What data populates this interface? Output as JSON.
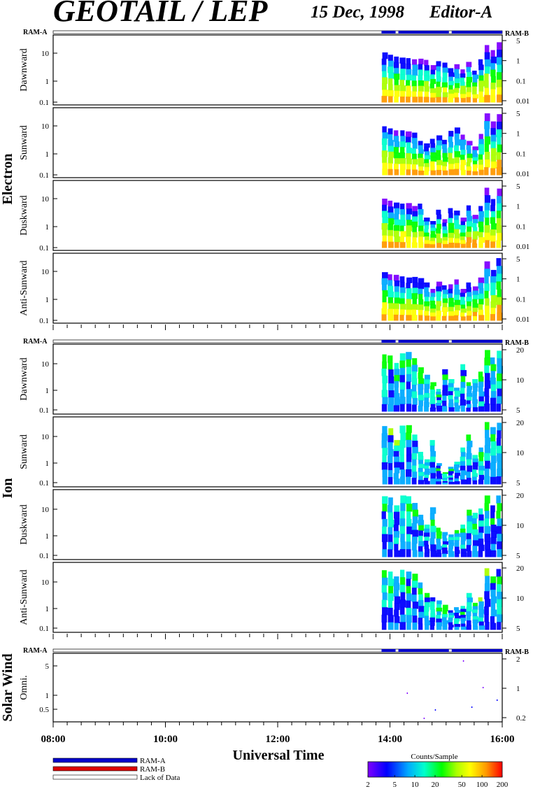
{
  "header": {
    "title": "GEOTAIL / LEP",
    "date": "15 Dec, 1998",
    "editor": "Editor-A"
  },
  "colors": {
    "ram_a": "#0000cc",
    "ram_b": "#dd0000",
    "lack": "#ffffff",
    "colorscale": [
      "#7f00ff",
      "#0000ff",
      "#00aaff",
      "#00ffcc",
      "#00ff00",
      "#aaff00",
      "#ffff00",
      "#ff9900",
      "#ff0000"
    ]
  },
  "chart_data": {
    "type": "heatmap",
    "x_axis": {
      "label": "Universal Time",
      "range": [
        "08:00",
        "16:00"
      ],
      "tick_labels": [
        "08:00",
        "10:00",
        "12:00",
        "14:00",
        "16:00"
      ]
    },
    "data_coverage": {
      "ram_a_label": "RAM-A",
      "ram_b_label": "RAM-B",
      "mode": "RAM-A",
      "segments": [
        [
          13.85,
          14.1
        ],
        [
          14.15,
          15.05
        ],
        [
          15.1,
          16.0
        ]
      ]
    },
    "groups": [
      {
        "name": "Electron",
        "panels": [
          {
            "label": "Dawnward",
            "left_ticks": [
              "10",
              "1",
              "0.1"
            ],
            "right_ticks": [
              "5",
              "1",
              "0.1",
              "0.01"
            ],
            "top_profile": [
              3.8,
              3.2,
              2.8,
              2.6,
              2.5,
              2.3,
              2.4,
              2.2,
              1.5,
              2.0,
              1.8,
              1.2,
              1.6,
              1.1,
              1.9,
              1.0,
              2.3,
              6.5,
              4.5,
              8.0
            ]
          },
          {
            "label": "Sunward",
            "left_ticks": [
              "10",
              "1",
              "0.1"
            ],
            "right_ticks": [
              "5",
              "1",
              "0.1",
              "0.01"
            ],
            "top_profile": [
              3.5,
              3.0,
              2.6,
              2.6,
              2.4,
              2.2,
              1.2,
              1.0,
              1.4,
              1.8,
              1.3,
              2.5,
              3.2,
              1.9,
              1.2,
              0.8,
              2.0,
              9.0,
              5.0,
              8.5
            ]
          },
          {
            "label": "Duskward",
            "left_ticks": [
              "10",
              "1",
              "0.1"
            ],
            "right_ticks": [
              "5",
              "1",
              "0.1",
              "0.01"
            ],
            "top_profile": [
              3.6,
              3.1,
              2.7,
              2.5,
              2.6,
              2.1,
              2.5,
              0.9,
              0.7,
              1.6,
              0.8,
              1.8,
              1.5,
              0.9,
              2.2,
              1.1,
              2.1,
              8.0,
              3.5,
              7.5
            ]
          },
          {
            "label": "Anti-Sunward",
            "left_ticks": [
              "10",
              "1",
              "0.1"
            ],
            "right_ticks": [
              "5",
              "1",
              "0.1",
              "0.01"
            ],
            "top_profile": [
              3.4,
              2.9,
              2.8,
              2.5,
              2.3,
              2.4,
              2.2,
              1.6,
              1.0,
              1.7,
              1.3,
              1.4,
              2.0,
              1.0,
              1.6,
              1.2,
              2.3,
              7.5,
              4.0,
              9.5
            ]
          }
        ]
      },
      {
        "name": "Ion",
        "panels": [
          {
            "label": "Dawnward",
            "left_ticks": [
              "10",
              "1",
              "0.1"
            ],
            "right_ticks": [
              "20",
              "10",
              "5"
            ],
            "top_profile": [
              20.0,
              18.0,
              9.0,
              22.0,
              25.0,
              14.0,
              6.0,
              3.0,
              1.5,
              0.8,
              5.0,
              2.0,
              0.9,
              8.0,
              1.5,
              2.0,
              4.0,
              30.0,
              15.0,
              28.0
            ]
          },
          {
            "label": "Sunward",
            "left_ticks": [
              "10",
              "1",
              "0.1"
            ],
            "right_ticks": [
              "20",
              "10",
              "5"
            ],
            "top_profile": [
              22.0,
              18.0,
              6.0,
              23.0,
              24.0,
              10.0,
              2.0,
              1.0,
              6.0,
              0.7,
              0.3,
              0.5,
              0.8,
              3.0,
              10.0,
              1.5,
              3.0,
              32.0,
              20.0,
              30.0
            ]
          },
          {
            "label": "Duskward",
            "left_ticks": [
              "10",
              "1",
              "0.1"
            ],
            "right_ticks": [
              "20",
              "10",
              "5"
            ],
            "top_profile": [
              28.0,
              25.0,
              12.0,
              30.0,
              28.0,
              15.0,
              5.0,
              2.0,
              10.0,
              1.5,
              1.0,
              0.8,
              1.2,
              2.0,
              8.0,
              6.0,
              9.0,
              30.0,
              12.0,
              30.0
            ]
          },
          {
            "label": "Anti-Sunward",
            "left_ticks": [
              "10",
              "1",
              "0.1"
            ],
            "right_ticks": [
              "20",
              "10",
              "5"
            ],
            "top_profile": [
              25.0,
              22.0,
              14.0,
              26.0,
              22.0,
              18.0,
              8.0,
              3.0,
              2.0,
              1.5,
              1.0,
              0.6,
              0.8,
              0.9,
              3.0,
              1.2,
              2.0,
              30.0,
              14.0,
              28.0
            ]
          }
        ]
      },
      {
        "name": "Solar Wind",
        "panels": [
          {
            "label": "Omni.",
            "left_ticks": [
              "5",
              "1",
              "0.5"
            ],
            "right_ticks": [
              "2",
              "1",
              "0.2"
            ],
            "top_profile": []
          }
        ]
      }
    ],
    "colorbar": {
      "title": "Counts/Sample",
      "range": [
        2,
        200
      ],
      "tick_labels": [
        "2",
        "5",
        "10",
        "20",
        "50",
        "100",
        "200"
      ]
    },
    "legend": [
      {
        "label": "RAM-A",
        "color": "#0000cc"
      },
      {
        "label": "RAM-B",
        "color": "#dd0000"
      },
      {
        "label": "Lack of Data",
        "color": "#ffffff"
      }
    ]
  }
}
